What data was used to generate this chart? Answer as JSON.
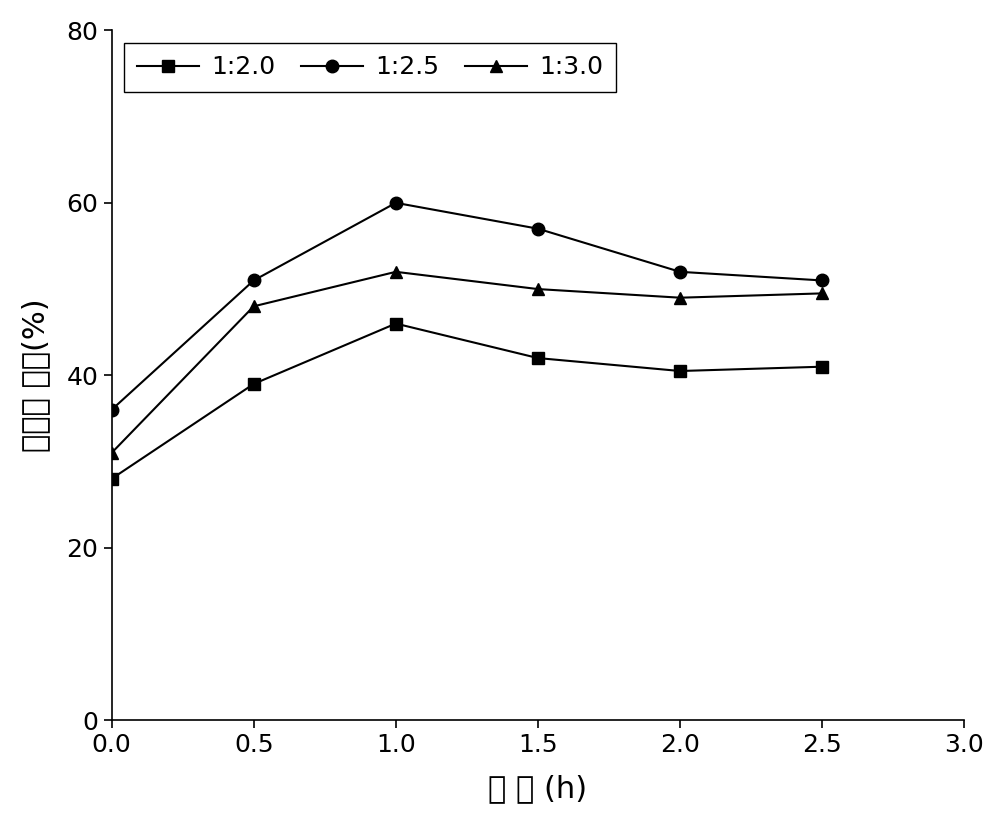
{
  "x": [
    0.0,
    0.5,
    1.0,
    1.5,
    2.0,
    2.5
  ],
  "series": [
    {
      "label": "1:2.0",
      "y": [
        28,
        39,
        46,
        42,
        40.5,
        41
      ],
      "marker": "s",
      "color": "#000000"
    },
    {
      "label": "1:2.5",
      "y": [
        36,
        51,
        60,
        57,
        52,
        51
      ],
      "marker": "o",
      "color": "#000000"
    },
    {
      "label": "1:3.0",
      "y": [
        31,
        48,
        52,
        50,
        49,
        49.5
      ],
      "marker": "^",
      "color": "#000000"
    }
  ],
  "xlabel": "时 间 (h)",
  "ylabel": "摩尔转 化率(%)",
  "xlim": [
    0.0,
    3.0
  ],
  "ylim": [
    0,
    80
  ],
  "xticks": [
    0.0,
    0.5,
    1.0,
    1.5,
    2.0,
    2.5,
    3.0
  ],
  "yticks": [
    0,
    20,
    40,
    60,
    80
  ],
  "linewidth": 1.5,
  "markersize": 9,
  "legend_loc": "upper left",
  "background_color": "#ffffff",
  "font_color": "#000000"
}
